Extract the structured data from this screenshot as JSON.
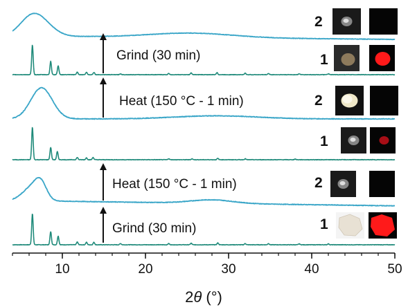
{
  "chart_data": {
    "type": "line",
    "title": "",
    "xlabel_prefix": "2",
    "xlabel_var": "θ",
    "xlabel_unit": " (°)",
    "ylabel": "",
    "xlim": [
      4,
      50
    ],
    "x_ticks": [
      10,
      20,
      30,
      40,
      50
    ],
    "grid": false,
    "legend": "none",
    "colors": {
      "crystalline": "#1f8a7a",
      "amorphous": "#3aa6c8",
      "axis": "#111111",
      "arrow": "#111111"
    },
    "series": [
      {
        "order": 1,
        "sample": "1",
        "color": "crystalline",
        "peaks": [
          [
            6.4,
            1.0
          ],
          [
            8.6,
            0.42
          ],
          [
            9.5,
            0.28
          ],
          [
            11.8,
            0.09
          ],
          [
            12.9,
            0.08
          ],
          [
            13.8,
            0.08
          ],
          [
            17.0,
            0.04
          ],
          [
            22.8,
            0.04
          ],
          [
            25.5,
            0.05
          ],
          [
            28.7,
            0.06
          ],
          [
            32.0,
            0.04
          ],
          [
            34.8,
            0.04
          ],
          [
            38.5,
            0.03
          ],
          [
            42.0,
            0.03
          ]
        ],
        "baseline": 0.0
      },
      {
        "order": 2,
        "sample": "2",
        "color": "amorphous",
        "humps": [
          [
            6.3,
            1.1,
            0.45
          ],
          [
            7.4,
            0.7,
            0.5
          ],
          [
            28.0,
            2.5,
            0.12
          ]
        ],
        "baseline_slope": -0.004
      },
      {
        "order": 3,
        "sample": "1",
        "color": "crystalline",
        "peaks": [
          [
            6.4,
            1.0
          ],
          [
            8.6,
            0.38
          ],
          [
            9.4,
            0.25
          ],
          [
            11.8,
            0.07
          ],
          [
            12.9,
            0.06
          ],
          [
            13.7,
            0.07
          ],
          [
            22.8,
            0.03
          ],
          [
            25.6,
            0.03
          ],
          [
            28.7,
            0.04
          ],
          [
            32.0,
            0.03
          ],
          [
            38.0,
            0.02
          ]
        ],
        "baseline": 0.0
      },
      {
        "order": 4,
        "sample": "2",
        "color": "amorphous",
        "humps": [
          [
            7.5,
            1.3,
            1.0
          ],
          [
            28.5,
            5.0,
            0.1
          ]
        ],
        "baseline_slope": 0.0
      },
      {
        "order": 5,
        "sample": "1",
        "color": "crystalline",
        "peaks": [
          [
            6.4,
            1.0
          ],
          [
            8.6,
            0.45
          ],
          [
            9.5,
            0.3
          ],
          [
            11.8,
            0.09
          ],
          [
            12.9,
            0.08
          ],
          [
            13.8,
            0.08
          ],
          [
            17.0,
            0.03
          ],
          [
            22.8,
            0.04
          ],
          [
            25.5,
            0.06
          ],
          [
            28.6,
            0.07
          ],
          [
            32.0,
            0.05
          ],
          [
            34.8,
            0.04
          ],
          [
            38.5,
            0.03
          ],
          [
            42.0,
            0.03
          ]
        ],
        "baseline": 0.0
      },
      {
        "order": 6,
        "sample": "2",
        "color": "amorphous",
        "humps": [
          [
            6.3,
            1.4,
            0.75
          ],
          [
            8.0,
            1.4,
            0.3
          ],
          [
            25.5,
            5.0,
            0.18
          ]
        ],
        "baseline_slope": -0.003
      }
    ],
    "annotations": [
      {
        "text": "Grind (30 min)",
        "between": [
          1,
          2
        ]
      },
      {
        "text": "Heat (150 °C - 1 min)",
        "between": [
          2,
          3
        ]
      },
      {
        "text": "Heat (150 °C - 1 min)",
        "between": [
          4,
          5
        ]
      },
      {
        "text": "Grind (30 min)",
        "between": [
          5,
          6
        ]
      }
    ],
    "sample_labels": [
      {
        "text": "1",
        "series": 1
      },
      {
        "text": "2",
        "series": 2
      },
      {
        "text": "1",
        "series": 3
      },
      {
        "text": "2",
        "series": 4
      },
      {
        "text": "1",
        "series": 5
      },
      {
        "text": "2",
        "series": 6
      }
    ],
    "photo_insets": [
      {
        "series": 1,
        "daylight": "white-solid",
        "uv": "red-emission"
      },
      {
        "series": 2,
        "daylight": "powder-dark",
        "uv": "no-emission"
      },
      {
        "series": 3,
        "daylight": "powder-dark",
        "uv": "weak-red-emission"
      },
      {
        "series": 4,
        "daylight": "white-powder",
        "uv": "no-emission"
      },
      {
        "series": 5,
        "daylight": "beige-powder",
        "uv": "red-emission"
      },
      {
        "series": 6,
        "daylight": "powder-dark",
        "uv": "no-emission"
      }
    ]
  }
}
